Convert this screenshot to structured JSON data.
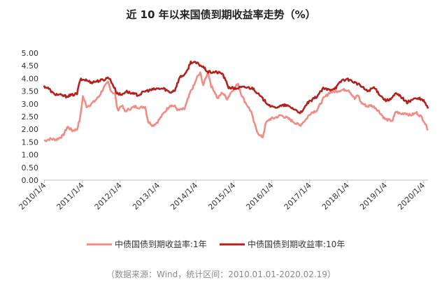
{
  "chart_data": {
    "type": "line",
    "title": "近 10 年以来国债到期收益率走势（%）",
    "ylim": [
      0,
      5
    ],
    "yticks": [
      "5.00",
      "4.50",
      "4.00",
      "3.50",
      "3.00",
      "2.50",
      "2.00",
      "1.50",
      "1.00",
      "0.50",
      "0.00"
    ],
    "xrange": [
      "2010-01-01",
      "2020-02-19"
    ],
    "xticks": [
      {
        "label": "2010/1/4",
        "date": "2010-01-04"
      },
      {
        "label": "2011/1/4",
        "date": "2011-01-04"
      },
      {
        "label": "2012/1/4",
        "date": "2012-01-04"
      },
      {
        "label": "2013/1/4",
        "date": "2013-01-04"
      },
      {
        "label": "2014/1/4",
        "date": "2014-01-04"
      },
      {
        "label": "2015/1/4",
        "date": "2015-01-04"
      },
      {
        "label": "2016/1/4",
        "date": "2016-01-04"
      },
      {
        "label": "2017/1/4",
        "date": "2017-01-04"
      },
      {
        "label": "2018/1/4",
        "date": "2018-01-04"
      },
      {
        "label": "2019/1/4",
        "date": "2019-01-04"
      },
      {
        "label": "2020/1/4",
        "date": "2020-01-04"
      }
    ],
    "legend_position": "bottom",
    "grid": false,
    "series": [
      {
        "name": "中债国债到期收益率:1年",
        "color": "#f08c84",
        "points": [
          [
            "2010-01-01",
            1.55
          ],
          [
            "2010-03-01",
            1.62
          ],
          [
            "2010-05-01",
            1.6
          ],
          [
            "2010-07-01",
            1.75
          ],
          [
            "2010-08-15",
            2.1
          ],
          [
            "2010-10-01",
            1.95
          ],
          [
            "2010-11-15",
            2.0
          ],
          [
            "2010-12-15",
            2.45
          ],
          [
            "2011-01-10",
            3.3
          ],
          [
            "2011-02-15",
            2.9
          ],
          [
            "2011-03-15",
            2.95
          ],
          [
            "2011-05-01",
            3.1
          ],
          [
            "2011-06-15",
            3.3
          ],
          [
            "2011-08-01",
            3.65
          ],
          [
            "2011-09-10",
            3.85
          ],
          [
            "2011-10-10",
            3.5
          ],
          [
            "2011-11-15",
            3.4
          ],
          [
            "2011-12-10",
            2.75
          ],
          [
            "2012-01-20",
            2.95
          ],
          [
            "2012-02-20",
            2.7
          ],
          [
            "2012-04-01",
            2.8
          ],
          [
            "2012-06-01",
            2.9
          ],
          [
            "2012-07-15",
            2.85
          ],
          [
            "2012-09-01",
            2.9
          ],
          [
            "2012-10-01",
            2.3
          ],
          [
            "2012-11-15",
            2.15
          ],
          [
            "2013-01-01",
            2.3
          ],
          [
            "2013-03-01",
            2.65
          ],
          [
            "2013-05-01",
            2.95
          ],
          [
            "2013-06-15",
            2.9
          ],
          [
            "2013-07-15",
            2.75
          ],
          [
            "2013-09-15",
            2.8
          ],
          [
            "2013-11-15",
            3.5
          ],
          [
            "2013-12-20",
            3.75
          ],
          [
            "2014-01-15",
            4.05
          ],
          [
            "2014-02-15",
            4.2
          ],
          [
            "2014-03-15",
            3.75
          ],
          [
            "2014-05-01",
            4.25
          ],
          [
            "2014-06-01",
            3.7
          ],
          [
            "2014-07-01",
            3.5
          ],
          [
            "2014-08-01",
            3.2
          ],
          [
            "2014-09-15",
            3.45
          ],
          [
            "2014-11-01",
            3.2
          ],
          [
            "2014-12-15",
            3.5
          ],
          [
            "2015-01-15",
            3.65
          ],
          [
            "2015-02-15",
            3.8
          ],
          [
            "2015-03-15",
            3.4
          ],
          [
            "2015-04-20",
            3.1
          ],
          [
            "2015-05-20",
            2.9
          ],
          [
            "2015-06-20",
            2.7
          ],
          [
            "2015-07-15",
            2.3
          ],
          [
            "2015-08-15",
            1.95
          ],
          [
            "2015-09-10",
            1.75
          ],
          [
            "2015-10-10",
            1.7
          ],
          [
            "2015-11-10",
            2.25
          ],
          [
            "2015-12-15",
            2.4
          ],
          [
            "2016-02-01",
            2.45
          ],
          [
            "2016-04-01",
            2.55
          ],
          [
            "2016-06-01",
            2.45
          ],
          [
            "2016-08-01",
            2.3
          ],
          [
            "2016-10-01",
            2.15
          ],
          [
            "2016-12-01",
            2.4
          ],
          [
            "2017-01-15",
            2.65
          ],
          [
            "2017-03-15",
            2.75
          ],
          [
            "2017-05-15",
            3.2
          ],
          [
            "2017-07-15",
            3.45
          ],
          [
            "2017-09-15",
            3.5
          ],
          [
            "2017-11-15",
            3.55
          ],
          [
            "2018-01-15",
            3.55
          ],
          [
            "2018-03-15",
            3.2
          ],
          [
            "2018-04-15",
            3.35
          ],
          [
            "2018-05-15",
            3.05
          ],
          [
            "2018-07-15",
            2.9
          ],
          [
            "2018-08-15",
            2.95
          ],
          [
            "2018-10-01",
            2.85
          ],
          [
            "2018-11-15",
            2.65
          ],
          [
            "2019-01-01",
            2.4
          ],
          [
            "2019-02-15",
            2.35
          ],
          [
            "2019-03-15",
            2.35
          ],
          [
            "2019-04-15",
            2.7
          ],
          [
            "2019-06-01",
            2.6
          ],
          [
            "2019-07-15",
            2.65
          ],
          [
            "2019-09-01",
            2.55
          ],
          [
            "2019-11-01",
            2.65
          ],
          [
            "2019-12-15",
            2.5
          ],
          [
            "2020-01-15",
            2.3
          ],
          [
            "2020-02-19",
            1.97
          ]
        ]
      },
      {
        "name": "中债国债到期收益率:10年",
        "color": "#b5201c",
        "points": [
          [
            "2010-01-01",
            3.7
          ],
          [
            "2010-02-15",
            3.6
          ],
          [
            "2010-04-01",
            3.4
          ],
          [
            "2010-06-01",
            3.35
          ],
          [
            "2010-08-01",
            3.3
          ],
          [
            "2010-10-01",
            3.35
          ],
          [
            "2010-11-15",
            3.4
          ],
          [
            "2010-12-15",
            3.95
          ],
          [
            "2011-02-01",
            3.95
          ],
          [
            "2011-04-01",
            3.85
          ],
          [
            "2011-06-01",
            3.9
          ],
          [
            "2011-08-01",
            3.95
          ],
          [
            "2011-09-15",
            4.05
          ],
          [
            "2011-10-15",
            3.85
          ],
          [
            "2011-12-01",
            3.45
          ],
          [
            "2012-01-15",
            3.35
          ],
          [
            "2012-03-01",
            3.5
          ],
          [
            "2012-05-01",
            3.4
          ],
          [
            "2012-07-01",
            3.35
          ],
          [
            "2012-09-01",
            3.5
          ],
          [
            "2012-11-01",
            3.55
          ],
          [
            "2013-01-01",
            3.6
          ],
          [
            "2013-03-01",
            3.6
          ],
          [
            "2013-05-01",
            3.45
          ],
          [
            "2013-06-15",
            3.55
          ],
          [
            "2013-08-01",
            4.05
          ],
          [
            "2013-10-01",
            4.2
          ],
          [
            "2013-11-15",
            4.65
          ],
          [
            "2014-01-15",
            4.6
          ],
          [
            "2014-03-15",
            4.45
          ],
          [
            "2014-05-01",
            4.25
          ],
          [
            "2014-07-15",
            4.25
          ],
          [
            "2014-09-15",
            4.2
          ],
          [
            "2014-11-15",
            3.65
          ],
          [
            "2015-01-15",
            3.6
          ],
          [
            "2015-03-15",
            3.65
          ],
          [
            "2015-05-15",
            3.65
          ],
          [
            "2015-07-15",
            3.6
          ],
          [
            "2015-09-15",
            3.3
          ],
          [
            "2015-11-15",
            3.05
          ],
          [
            "2016-01-15",
            2.85
          ],
          [
            "2016-03-15",
            2.9
          ],
          [
            "2016-05-15",
            2.95
          ],
          [
            "2016-07-15",
            2.85
          ],
          [
            "2016-09-15",
            2.7
          ],
          [
            "2016-10-20",
            2.65
          ],
          [
            "2016-12-15",
            3.05
          ],
          [
            "2017-01-15",
            3.1
          ],
          [
            "2017-03-15",
            3.3
          ],
          [
            "2017-05-15",
            3.6
          ],
          [
            "2017-07-15",
            3.55
          ],
          [
            "2017-09-15",
            3.65
          ],
          [
            "2017-11-15",
            3.95
          ],
          [
            "2018-01-15",
            3.95
          ],
          [
            "2018-03-15",
            3.85
          ],
          [
            "2018-05-15",
            3.7
          ],
          [
            "2018-07-15",
            3.5
          ],
          [
            "2018-09-15",
            3.65
          ],
          [
            "2018-11-15",
            3.35
          ],
          [
            "2019-01-01",
            3.15
          ],
          [
            "2019-02-15",
            3.15
          ],
          [
            "2019-04-15",
            3.4
          ],
          [
            "2019-06-01",
            3.3
          ],
          [
            "2019-08-01",
            3.05
          ],
          [
            "2019-10-01",
            3.2
          ],
          [
            "2019-12-01",
            3.2
          ],
          [
            "2020-01-15",
            3.1
          ],
          [
            "2020-02-19",
            2.82
          ]
        ]
      }
    ]
  },
  "source_note": "（数据来源：Wind，统计区间：2010.01.01-2020.02.19）"
}
